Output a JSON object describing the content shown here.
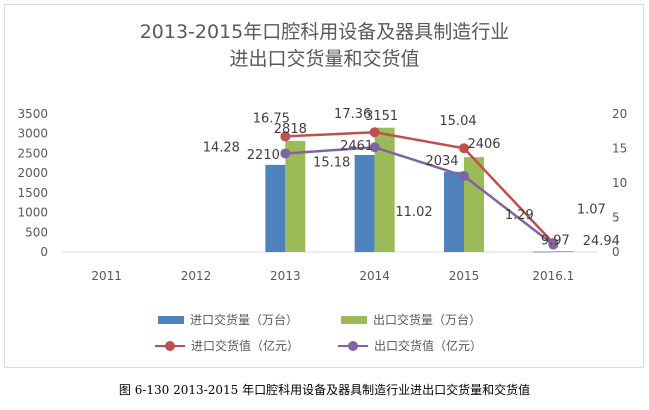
{
  "chart_data": {
    "type": "bar+line",
    "title_line1": "2013-2015年口腔科用设备及器具制造行业",
    "title_line2": "进出口交货量和交货值",
    "categories": [
      "2011",
      "2012",
      "2013",
      "2014",
      "2015",
      "2016.1"
    ],
    "y_left": {
      "min": 0,
      "max": 3500,
      "ticks": [
        "0",
        "500",
        "1000",
        "1500",
        "2000",
        "2500",
        "3000",
        "3500"
      ]
    },
    "y_right": {
      "min": 0,
      "max": 20,
      "ticks": [
        "0",
        "5",
        "10",
        "15",
        "20"
      ]
    },
    "series": [
      {
        "name": "进口交货量（万台）",
        "type": "bar",
        "axis": "left",
        "color": "#4f81bd",
        "values": [
          null,
          null,
          2210,
          2461,
          2034,
          9.97
        ],
        "labels": [
          "",
          "",
          "2210",
          "2461",
          "2034",
          "9.97"
        ]
      },
      {
        "name": "出口交货量（万台）",
        "type": "bar",
        "axis": "left",
        "color": "#9bbb59",
        "values": [
          null,
          null,
          2818,
          3151,
          2406,
          24.94
        ],
        "labels": [
          "",
          "",
          "2818",
          "3151",
          "2406",
          "24.94"
        ]
      },
      {
        "name": "进口交货值（亿元）",
        "type": "line",
        "axis": "right",
        "color": "#c0504d",
        "values": [
          null,
          null,
          16.75,
          17.36,
          15.04,
          1.29
        ],
        "labels": [
          "",
          "",
          "16.75",
          "17.36",
          "15.04",
          "1.29"
        ]
      },
      {
        "name": "出口交货值（亿元）",
        "type": "line",
        "axis": "right",
        "color": "#8064a2",
        "values": [
          null,
          null,
          14.28,
          15.18,
          11.02,
          1.07
        ],
        "labels": [
          "",
          "",
          "14.28",
          "15.18",
          "11.02",
          "1.07"
        ]
      }
    ]
  },
  "caption": "图 6-130 2013-2015 年口腔科用设备及器具制造行业进出口交货量和交货值"
}
